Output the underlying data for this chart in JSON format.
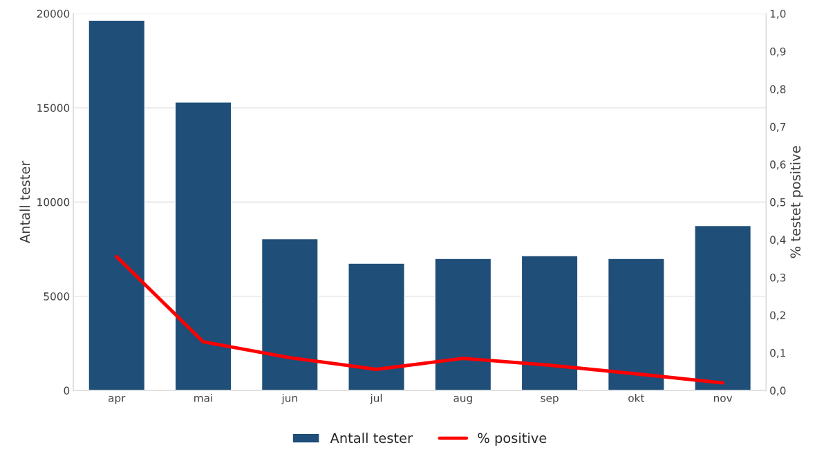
{
  "chart_data": {
    "type": "bar",
    "ylabel": "Antall tester",
    "y2label": "% testet positive",
    "categories": [
      "apr",
      "mai",
      "jun",
      "jul",
      "aug",
      "sep",
      "okt",
      "nov"
    ],
    "series": [
      {
        "name": "Antall tester",
        "color": "#1f4e79",
        "values": [
          19650,
          15300,
          8050,
          6750,
          7000,
          7150,
          7000,
          8750
        ]
      },
      {
        "name": "% positive",
        "type": "line",
        "axis": "y2",
        "color": "#ff0000",
        "values": [
          0.355,
          0.129,
          0.087,
          0.056,
          0.085,
          0.067,
          0.044,
          0.02
        ]
      }
    ],
    "ylim": [
      0,
      20000
    ],
    "yticks": [
      0,
      5000,
      10000,
      15000,
      20000
    ],
    "y2lim": [
      0,
      1.0
    ],
    "y2ticks": [
      {
        "value": 0,
        "label": "0,0"
      },
      {
        "value": 0.1,
        "label": "0,1"
      },
      {
        "value": 0.2,
        "label": "0,2"
      },
      {
        "value": 0.3,
        "label": "0,3"
      },
      {
        "value": 0.4,
        "label": "0,4"
      },
      {
        "value": 0.5,
        "label": "0,5"
      },
      {
        "value": 0.6,
        "label": "0,6"
      },
      {
        "value": 0.7,
        "label": "0,7"
      },
      {
        "value": 0.8,
        "label": "0,8"
      },
      {
        "value": 0.9,
        "label": "0,9"
      },
      {
        "value": 1.0,
        "label": "1,0"
      }
    ],
    "grid": "y",
    "legend": "bottom",
    "marker": "none",
    "line_style": "solid"
  }
}
